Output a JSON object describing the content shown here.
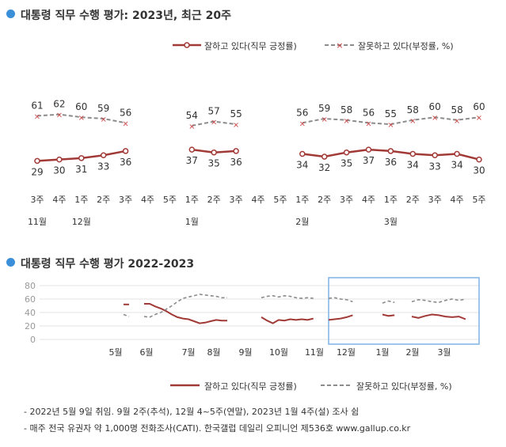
{
  "section1": {
    "title": "대통령 직무 수행 평가: 2023년, 최근 20주"
  },
  "section2": {
    "title": "대통령 직무 수행 평가 2022-2023"
  },
  "legend": {
    "approve": "잘하고 있다(직무 긍정률)",
    "disapprove": "잘못하고 있다(부정률, %)"
  },
  "colors": {
    "approve": "#a13a36",
    "disapprove": "#8c8c8c",
    "accent": "#3b8fd9",
    "highlight": "#7fb2e5"
  },
  "footnotes": [
    "- 2022년 5월 9일 취임. 9월 2주(추석), 12월 4~5주(연말), 2023년 1월 4주(설) 조사 쉼",
    "- 매주 전국 유권자 약 1,000명 전화조사(CATI). 한국갤럽 데일리 오피니언 제536호 www.gallup.co.kr"
  ],
  "chart_data": [
    {
      "type": "line",
      "title": "대통령 직무 수행 평가: 2023년, 최근 20주",
      "categories": [
        "3주",
        "4주",
        "1주",
        "2주",
        "3주",
        "4주",
        "5주",
        "1주",
        "2주",
        "3주",
        "4주",
        "5주",
        "1주",
        "2주",
        "3주",
        "4주",
        "1주",
        "2주",
        "3주",
        "4주",
        "5주"
      ],
      "month_labels": [
        {
          "index": 0,
          "label": "11월"
        },
        {
          "index": 2,
          "label": "12월"
        },
        {
          "index": 7,
          "label": "1월"
        },
        {
          "index": 12,
          "label": "2월"
        },
        {
          "index": 16,
          "label": "3월"
        }
      ],
      "series": [
        {
          "name": "잘하고 있다(직무 긍정률)",
          "values": [
            29,
            30,
            31,
            33,
            36,
            null,
            null,
            37,
            35,
            36,
            null,
            null,
            34,
            32,
            35,
            37,
            36,
            34,
            33,
            34,
            30
          ]
        },
        {
          "name": "잘못하고 있다(부정률, %)",
          "values": [
            61,
            62,
            60,
            59,
            56,
            null,
            null,
            54,
            57,
            55,
            null,
            null,
            56,
            59,
            58,
            56,
            55,
            58,
            60,
            58,
            60
          ]
        }
      ],
      "ylim": [
        0,
        80
      ]
    },
    {
      "type": "line",
      "title": "대통령 직무 수행 평가 2022-2023",
      "x_labels": [
        "5월",
        "6월",
        "7월",
        "8월",
        "9월",
        "10월",
        "11월",
        "12월",
        "1월",
        "2월",
        "3월"
      ],
      "y_ticks": [
        0,
        20,
        40,
        60,
        80
      ],
      "ylim": [
        0,
        80
      ],
      "grid": true,
      "series": [
        {
          "name": "잘하고 있다(직무 긍정률)",
          "segments": [
            [
              52,
              52
            ],
            [
              53,
              53,
              49,
              46,
              42,
              37,
              33,
              31,
              30,
              27,
              24,
              25,
              27,
              29,
              28,
              28
            ],
            [
              33,
              28,
              24,
              29,
              28,
              30,
              29,
              30,
              29,
              31
            ],
            [
              29,
              30,
              31,
              33,
              36
            ],
            [
              37,
              35,
              36
            ],
            [
              34,
              32,
              35,
              37,
              36,
              34,
              33,
              34,
              30
            ]
          ]
        },
        {
          "name": "잘못하고 있다(부정률, %)",
          "segments": [
            [
              37,
              34
            ],
            [
              34,
              33,
              37,
              40,
              45,
              50,
              56,
              61,
              63,
              65,
              67,
              66,
              65,
              64,
              62,
              62
            ],
            [
              62,
              64,
              65,
              63,
              65,
              64,
              62,
              61,
              62,
              61
            ],
            [
              61,
              62,
              60,
              59,
              56
            ],
            [
              54,
              57,
              55
            ],
            [
              56,
              59,
              58,
              56,
              55,
              58,
              60,
              58,
              60
            ]
          ]
        }
      ]
    }
  ]
}
